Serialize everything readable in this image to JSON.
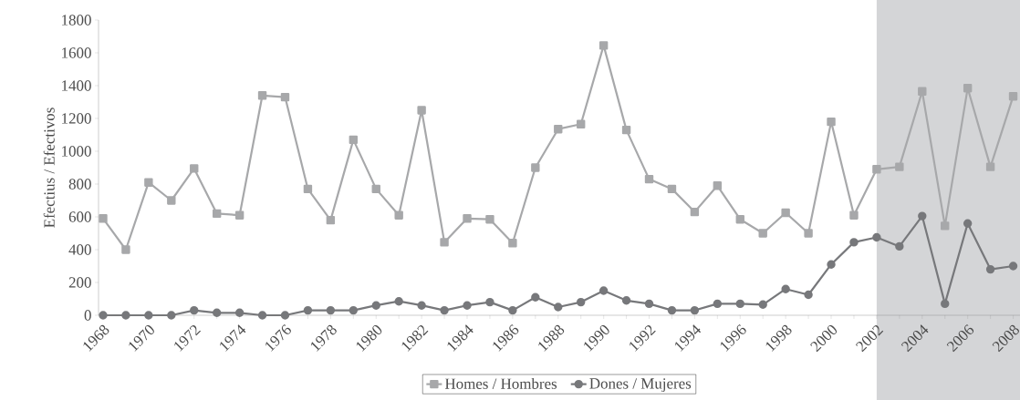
{
  "chart_data": {
    "type": "line",
    "ylabel": "Efectius / Efectivos",
    "x": [
      1968,
      1969,
      1970,
      1971,
      1972,
      1973,
      1974,
      1975,
      1976,
      1977,
      1978,
      1979,
      1980,
      1981,
      1982,
      1983,
      1984,
      1985,
      1986,
      1987,
      1988,
      1989,
      1990,
      1991,
      1992,
      1993,
      1994,
      1995,
      1996,
      1997,
      1998,
      1999,
      2000,
      2001,
      2002,
      2003,
      2004,
      2005,
      2006,
      2007,
      2008
    ],
    "series": [
      {
        "name": "Homes / Hombres",
        "color": "#a7a8aa",
        "marker": "square",
        "values": [
          590,
          400,
          810,
          700,
          895,
          620,
          610,
          1340,
          1330,
          770,
          580,
          1070,
          770,
          610,
          1250,
          445,
          590,
          585,
          440,
          900,
          1135,
          1165,
          1645,
          1130,
          830,
          770,
          630,
          790,
          585,
          500,
          625,
          500,
          1180,
          610,
          890,
          905,
          1365,
          545,
          1385,
          905,
          1335
        ]
      },
      {
        "name": "Dones / Mujeres",
        "color": "#77787b",
        "marker": "circle",
        "values": [
          0,
          0,
          0,
          0,
          30,
          15,
          15,
          0,
          0,
          30,
          30,
          30,
          60,
          85,
          60,
          30,
          60,
          80,
          30,
          110,
          50,
          80,
          150,
          90,
          70,
          30,
          30,
          70,
          70,
          65,
          160,
          125,
          310,
          445,
          475,
          420,
          605,
          70,
          560,
          280,
          300
        ]
      }
    ],
    "xlim": [
      1967.8,
      2008.3
    ],
    "ylim": [
      0,
      1800
    ],
    "xticks": [
      1968,
      {
        "value": 1969,
        "label": null
      },
      1970,
      {
        "value": 1971,
        "label": null
      },
      1972,
      {
        "value": 1973,
        "label": null
      },
      1974,
      {
        "value": 1975,
        "label": null
      },
      1976,
      {
        "value": 1977,
        "label": null
      },
      1978,
      {
        "value": 1979,
        "label": null
      },
      1980,
      {
        "value": 1981,
        "label": null
      },
      1982,
      {
        "value": 1983,
        "label": null
      },
      1984,
      {
        "value": 1985,
        "label": null
      },
      1986,
      {
        "value": 1987,
        "label": null
      },
      1988,
      {
        "value": 1989,
        "label": null
      },
      1990,
      {
        "value": 1991,
        "label": null
      },
      1992,
      {
        "value": 1993,
        "label": null
      },
      1994,
      {
        "value": 1995,
        "label": null
      },
      1996,
      {
        "value": 1997,
        "label": null
      },
      1998,
      {
        "value": 1999,
        "label": null
      },
      2000,
      {
        "value": 2001,
        "label": null
      },
      2002,
      {
        "value": 2003,
        "label": null
      },
      2004,
      {
        "value": 2005,
        "label": null
      },
      2006,
      {
        "value": 2007,
        "label": null
      },
      2008
    ],
    "yticks": [
      0,
      200,
      400,
      600,
      800,
      1000,
      1200,
      1400,
      1600,
      1800
    ],
    "bands": [
      {
        "axis": "x",
        "from": 2002,
        "to": 2008.3,
        "color": "#d4d5d7"
      }
    ],
    "legend": "bottom",
    "line_style": "solid",
    "grid": false
  }
}
